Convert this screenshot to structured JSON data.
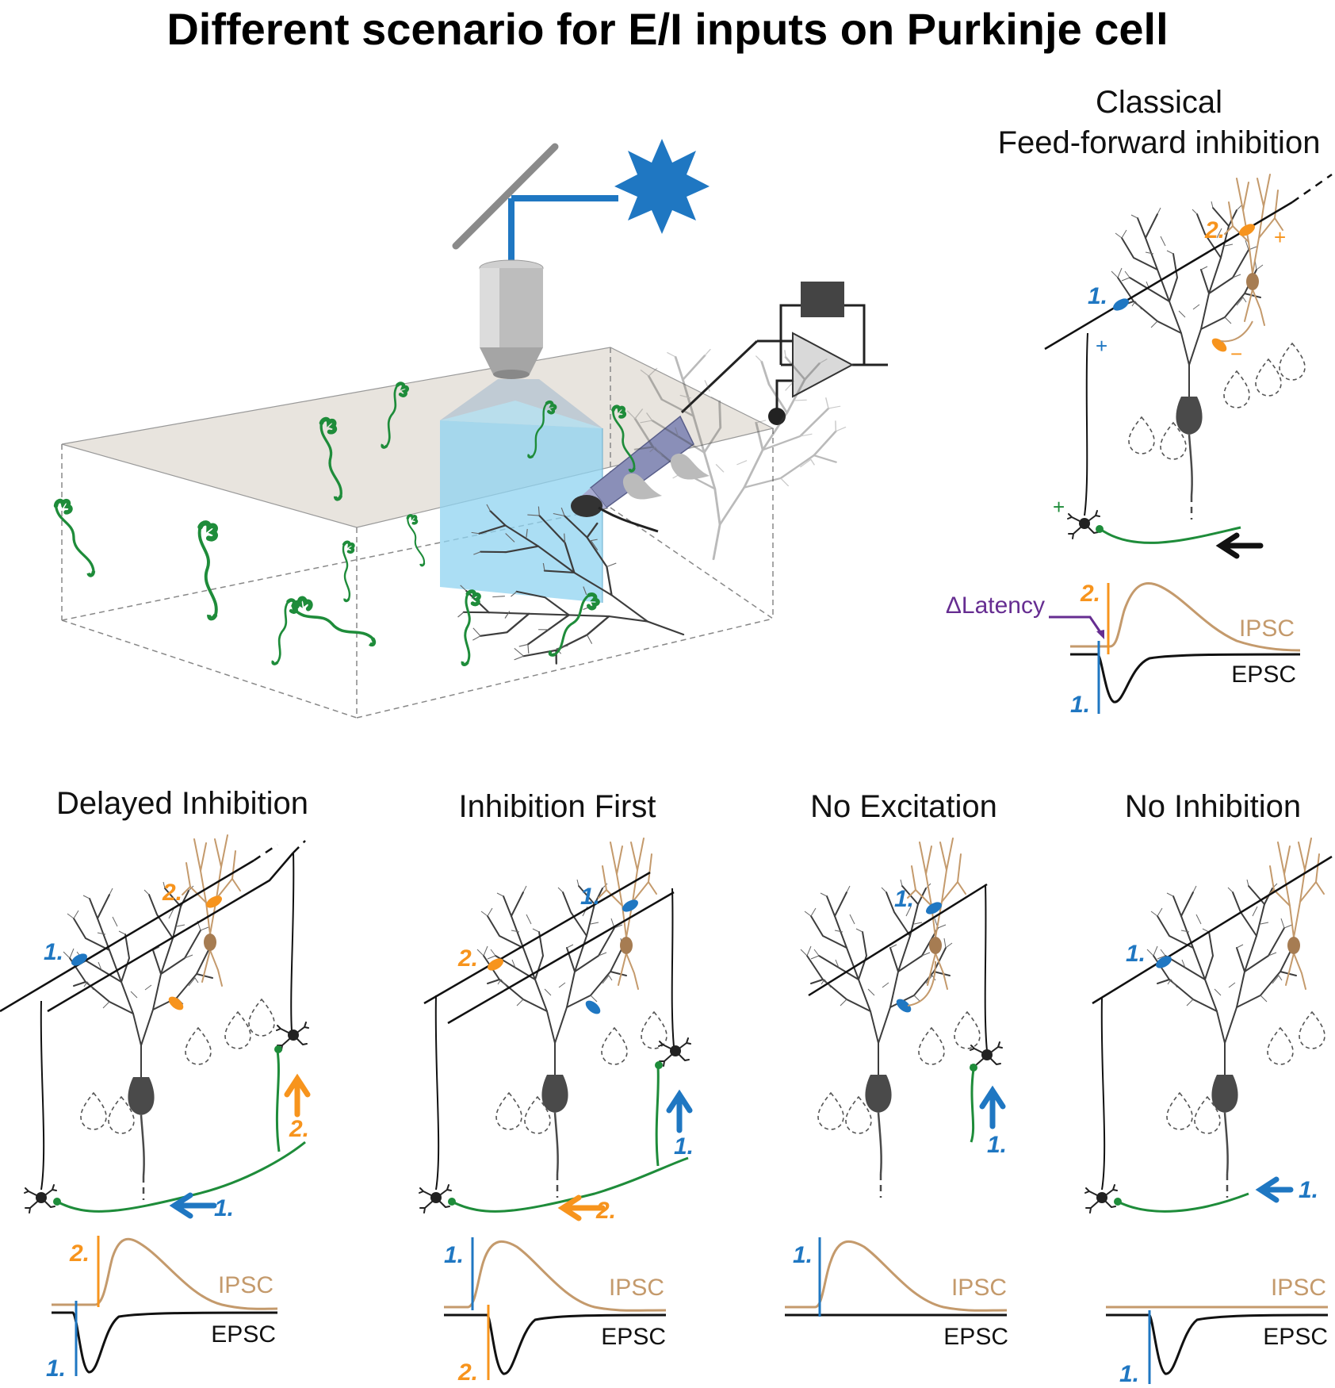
{
  "figure": {
    "title": "Different scenario for E/I inputs on Purkinje cell"
  },
  "colors": {
    "blue": "#1f77c2",
    "orange": "#f7941d",
    "tan": "#c49a6c",
    "green": "#1e8c3a",
    "purple": "#662d91",
    "gray": "#3d3d3d"
  },
  "panels": {
    "classical": {
      "title_line1": "Classical",
      "title_line2": "Feed-forward inhibition",
      "latency_label": "ΔLatency",
      "ipsc_label": "IPSC",
      "epsc_label": "EPSC",
      "label_1": "1.",
      "label_2": "2.",
      "plus": "+",
      "minus": "−"
    },
    "delayed": {
      "title": "Delayed Inhibition",
      "ipsc_label": "IPSC",
      "epsc_label": "EPSC",
      "label_1": "1.",
      "label_2": "2."
    },
    "first": {
      "title": "Inhibition First",
      "ipsc_label": "IPSC",
      "epsc_label": "EPSC",
      "label_1": "1.",
      "label_2": "2."
    },
    "noexc": {
      "title": "No Excitation",
      "ipsc_label": "IPSC",
      "epsc_label": "EPSC",
      "label_1": "1."
    },
    "noinh": {
      "title": "No Inhibition",
      "ipsc_label": "IPSC",
      "epsc_label": "EPSC",
      "label_1": "1."
    }
  }
}
